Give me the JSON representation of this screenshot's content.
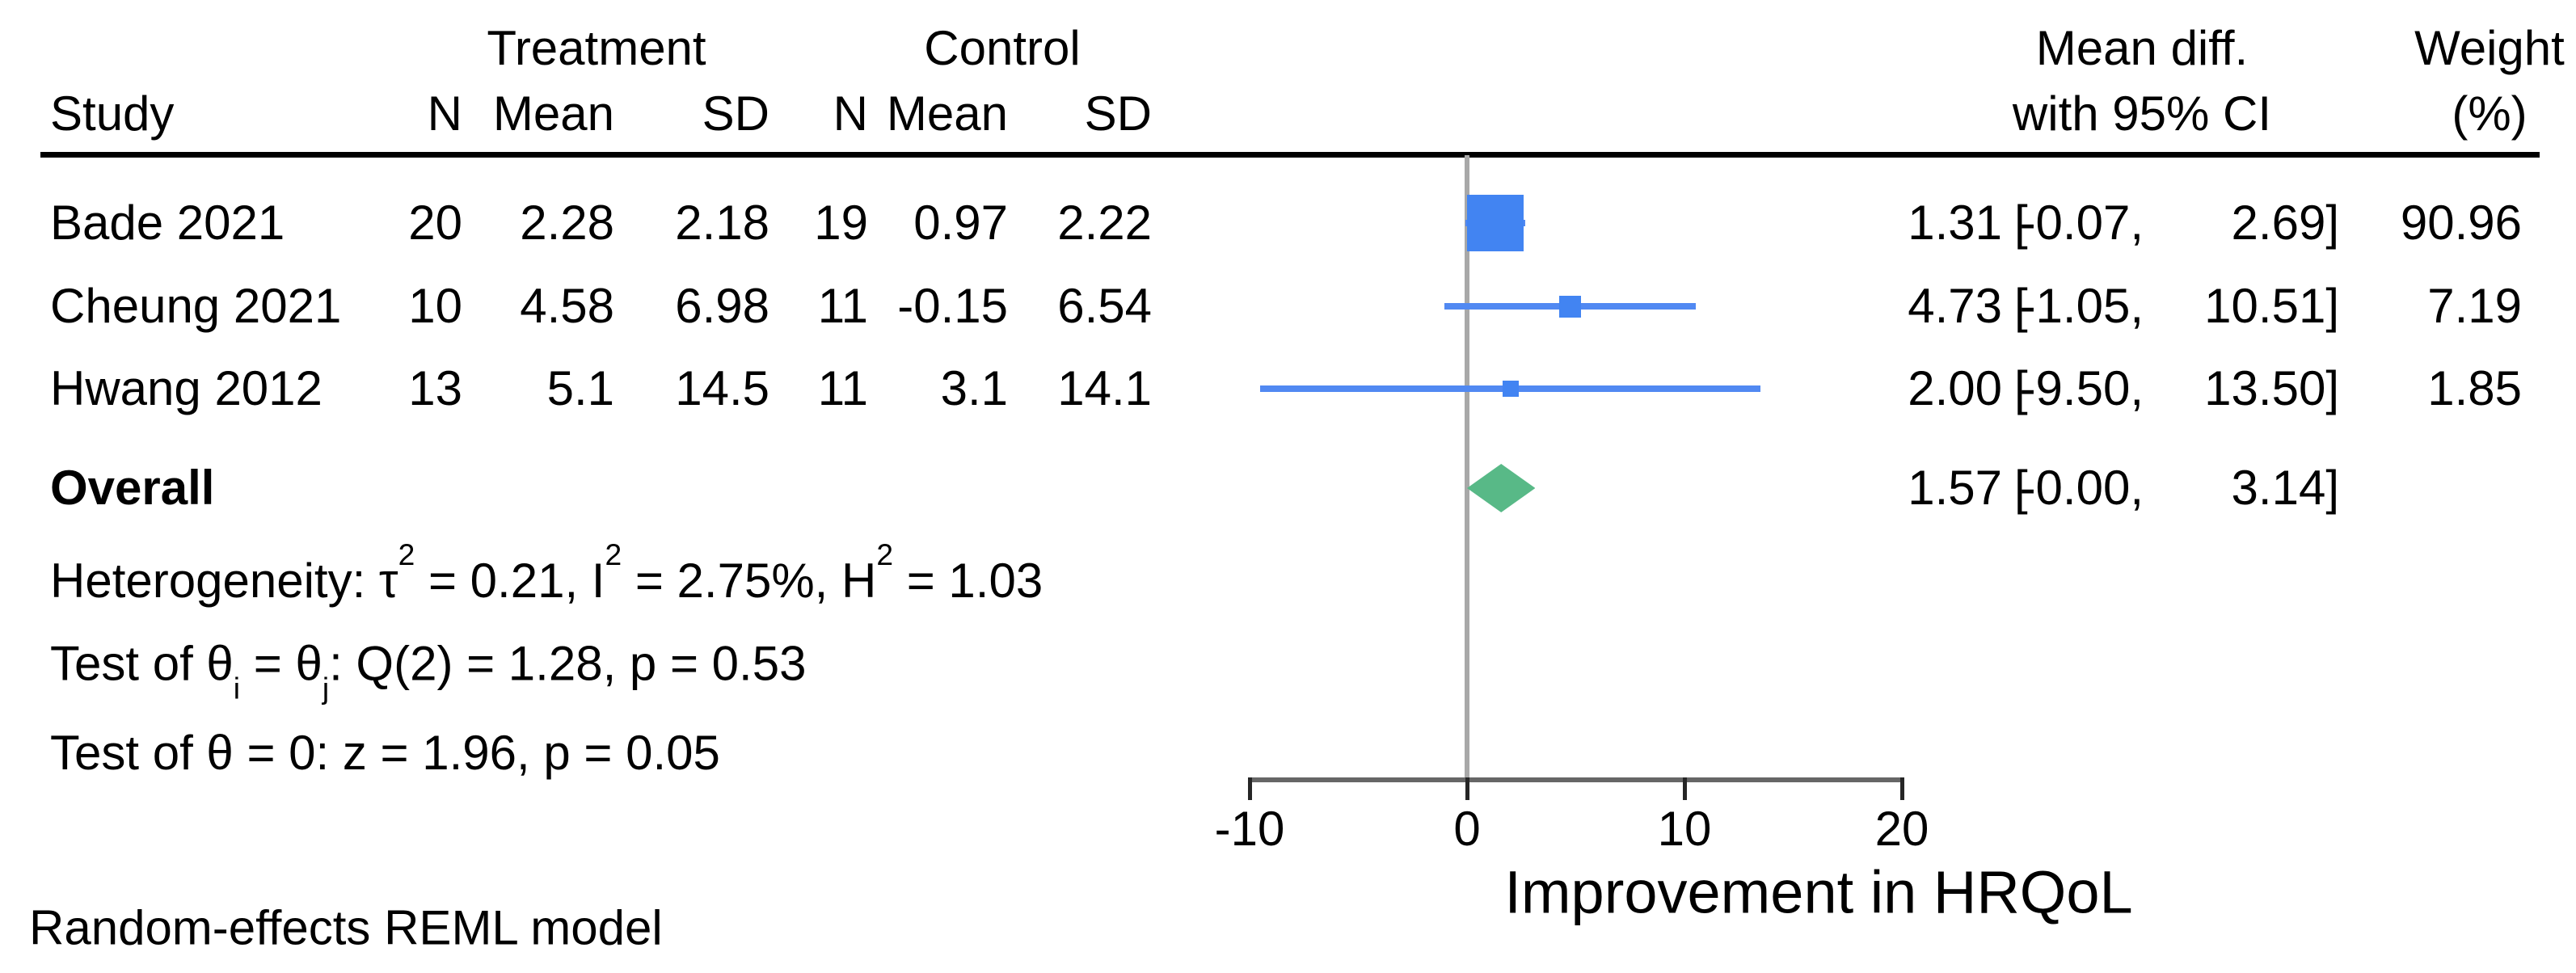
{
  "header": {
    "study": "Study",
    "treatment_group": "Treatment",
    "control_group": "Control",
    "n": "N",
    "mean": "Mean",
    "sd": "SD",
    "effect_line1": "Mean diff.",
    "effect_line2": "with 95% CI",
    "weight_line1": "Weight",
    "weight_line2": "(%)"
  },
  "punct": {
    "open_bracket": "["
  },
  "rows": [
    {
      "study": "Bade 2021",
      "t_n": "20",
      "t_mean": "2.28",
      "t_sd": "2.18",
      "c_n": "19",
      "c_mean": "0.97",
      "c_sd": "2.22",
      "est": "1.31",
      "lo": "-0.07,",
      "hi": "2.69]",
      "weight": "90.96"
    },
    {
      "study": "Cheung 2021",
      "t_n": "10",
      "t_mean": "4.58",
      "t_sd": "6.98",
      "c_n": "11",
      "c_mean": "-0.15",
      "c_sd": "6.54",
      "est": "4.73",
      "lo": "-1.05,",
      "hi": "10.51]",
      "weight": "7.19"
    },
    {
      "study": "Hwang 2012",
      "t_n": "13",
      "t_mean": "5.1",
      "t_sd": "14.5",
      "c_n": "11",
      "c_mean": "3.1",
      "c_sd": "14.1",
      "est": "2.00",
      "lo": "-9.50,",
      "hi": "13.50]",
      "weight": "1.85"
    }
  ],
  "overall": {
    "label": "Overall",
    "est": "1.57",
    "lo": "-0.00,",
    "hi": "3.14]"
  },
  "stats": {
    "heterogeneity": [
      {
        "k": "t",
        "v": "Heterogeneity: τ"
      },
      {
        "k": "sup",
        "v": "2"
      },
      {
        "k": "t",
        "v": " = 0.21, I"
      },
      {
        "k": "sup",
        "v": "2"
      },
      {
        "k": "t",
        "v": " = 2.75%, H"
      },
      {
        "k": "sup",
        "v": "2"
      },
      {
        "k": "t",
        "v": " = 1.03"
      }
    ],
    "test_group": [
      {
        "k": "t",
        "v": "Test of θ"
      },
      {
        "k": "sub",
        "v": "i"
      },
      {
        "k": "t",
        "v": " = θ"
      },
      {
        "k": "sub",
        "v": "j"
      },
      {
        "k": "t",
        "v": ": Q(2) = 1.28, p = 0.53"
      }
    ],
    "test_overall": [
      {
        "k": "t",
        "v": "Test of θ = 0: z = 1.96, p = 0.05"
      }
    ]
  },
  "axis": {
    "tick_labels": [
      "-10",
      "0",
      "10",
      "20"
    ],
    "title": "Improvement in HRQoL"
  },
  "footer": "Random-effects REML model",
  "colors": {
    "marker_square": "#4284f2",
    "ci_line": "#5189f2",
    "overall_diamond": "#58b987",
    "zero_line": "#a8a8a8",
    "axis_line": "#666666",
    "tick_mark": "#262626",
    "header_rule": "#000000"
  },
  "chart_data": {
    "type": "forest",
    "effect_measure": "Mean diff.",
    "x_axis": {
      "range": [
        -10,
        20
      ],
      "ticks": [
        -10,
        0,
        10,
        20
      ],
      "label": "Improvement in HRQoL",
      "zero_line": 0
    },
    "studies": [
      {
        "name": "Bade 2021",
        "treatment": {
          "n": 20,
          "mean": 2.28,
          "sd": 2.18
        },
        "control": {
          "n": 19,
          "mean": 0.97,
          "sd": 2.22
        },
        "mean_diff": 1.31,
        "ci95": [
          -0.07,
          2.69
        ],
        "weight_pct": 90.96
      },
      {
        "name": "Cheung 2021",
        "treatment": {
          "n": 10,
          "mean": 4.58,
          "sd": 6.98
        },
        "control": {
          "n": 11,
          "mean": -0.15,
          "sd": 6.54
        },
        "mean_diff": 4.73,
        "ci95": [
          -1.05,
          10.51
        ],
        "weight_pct": 7.19
      },
      {
        "name": "Hwang 2012",
        "treatment": {
          "n": 13,
          "mean": 5.1,
          "sd": 14.5
        },
        "control": {
          "n": 11,
          "mean": 3.1,
          "sd": 14.1
        },
        "mean_diff": 2.0,
        "ci95": [
          -9.5,
          13.5
        ],
        "weight_pct": 1.85
      }
    ],
    "overall": {
      "mean_diff": 1.57,
      "ci95": [
        -0.0,
        3.14
      ]
    },
    "heterogeneity": {
      "tau2": 0.21,
      "I2_pct": 2.75,
      "H2": 1.03
    },
    "test_group_equality": {
      "Q": 1.28,
      "df": 2,
      "p": 0.53
    },
    "test_overall_effect": {
      "z": 1.96,
      "p": 0.05
    },
    "model": "Random-effects REML model"
  }
}
